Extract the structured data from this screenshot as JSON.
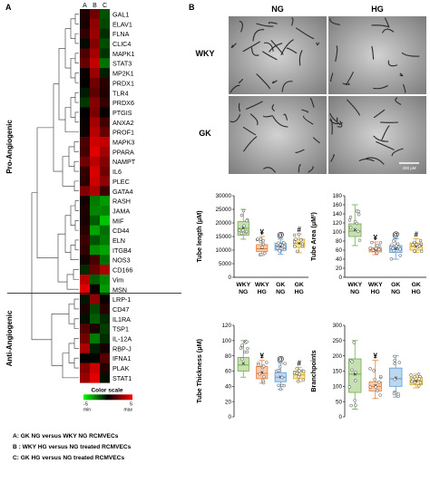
{
  "panels": {
    "a": {
      "label": "A"
    },
    "b": {
      "label": "B"
    }
  },
  "heatmap": {
    "column_labels": [
      "A",
      "B",
      "C"
    ],
    "groups": [
      {
        "name": "Pro-Angiogenic"
      },
      {
        "name": "Anti-Angiogenic"
      }
    ],
    "genes": [
      {
        "name": "GAL1",
        "v": [
          0.6,
          2.2,
          -1.6
        ]
      },
      {
        "name": "ELAV1",
        "v": [
          0.5,
          2.8,
          -1.4
        ]
      },
      {
        "name": "FLNA",
        "v": [
          1.0,
          3.0,
          -0.9
        ]
      },
      {
        "name": "CLIC4",
        "v": [
          -0.2,
          2.6,
          -1.5
        ]
      },
      {
        "name": "MAPK1",
        "v": [
          1.5,
          3.2,
          -1.0
        ]
      },
      {
        "name": "STAT3",
        "v": [
          2.0,
          3.8,
          -2.2
        ]
      },
      {
        "name": "MP2K1",
        "v": [
          0.2,
          3.0,
          -0.6
        ]
      },
      {
        "name": "PRDX1",
        "v": [
          0.1,
          2.2,
          0.8
        ]
      },
      {
        "name": "TLR4",
        "v": [
          -0.5,
          1.8,
          0.6
        ]
      },
      {
        "name": "PRDX6",
        "v": [
          -1.1,
          2.6,
          1.0
        ]
      },
      {
        "name": "PTGIS",
        "v": [
          0.0,
          2.4,
          0.2
        ]
      },
      {
        "name": "ANXA2",
        "v": [
          0.2,
          3.2,
          1.3
        ]
      },
      {
        "name": "PROF1",
        "v": [
          0.3,
          3.6,
          2.0
        ]
      },
      {
        "name": "MAPK3",
        "v": [
          1.5,
          4.0,
          3.8
        ]
      },
      {
        "name": "PPARA",
        "v": [
          1.3,
          4.4,
          3.2
        ]
      },
      {
        "name": "NAMPT",
        "v": [
          2.2,
          3.6,
          2.6
        ]
      },
      {
        "name": "IL6",
        "v": [
          1.0,
          4.2,
          2.2
        ]
      },
      {
        "name": "PLEC",
        "v": [
          0.8,
          4.0,
          2.8
        ]
      },
      {
        "name": "GATA4",
        "v": [
          2.5,
          3.4,
          1.2
        ]
      },
      {
        "name": "RASH",
        "v": [
          0.4,
          -2.4,
          -3.0
        ]
      },
      {
        "name": "JAMA",
        "v": [
          0.6,
          -2.6,
          -2.6
        ]
      },
      {
        "name": "MIF",
        "v": [
          0.5,
          -1.8,
          -3.8
        ]
      },
      {
        "name": "CD44",
        "v": [
          0.8,
          -3.2,
          -2.2
        ]
      },
      {
        "name": "ELN",
        "v": [
          1.2,
          -1.6,
          -2.4
        ]
      },
      {
        "name": "ITGB4",
        "v": [
          1.0,
          -2.8,
          -3.2
        ]
      },
      {
        "name": "NOS3",
        "v": [
          0.4,
          1.4,
          -2.2
        ]
      },
      {
        "name": "CD166",
        "v": [
          -0.8,
          2.0,
          3.4
        ]
      },
      {
        "name": "Vim",
        "v": [
          3.6,
          -1.8,
          -2.6
        ]
      },
      {
        "name": "MSN",
        "v": [
          4.4,
          0.2,
          -3.0
        ]
      },
      {
        "name": "LRP-1",
        "v": [
          -0.4,
          2.8,
          0.3
        ]
      },
      {
        "name": "CD47",
        "v": [
          0.6,
          -1.4,
          0.8
        ]
      },
      {
        "name": "IL1RA",
        "v": [
          -0.3,
          -1.8,
          -0.8
        ]
      },
      {
        "name": "TSP1",
        "v": [
          1.6,
          0.5,
          -1.2
        ]
      },
      {
        "name": "IL-12A",
        "v": [
          2.2,
          -2.4,
          -0.9
        ]
      },
      {
        "name": "RBP-J",
        "v": [
          3.4,
          -0.6,
          0.4
        ]
      },
      {
        "name": "IFNA1",
        "v": [
          0.0,
          -0.1,
          1.6
        ]
      },
      {
        "name": "PLAK",
        "v": [
          2.6,
          4.0,
          0.8
        ]
      },
      {
        "name": "STAT1",
        "v": [
          3.0,
          4.4,
          -0.3
        ]
      }
    ],
    "scale": {
      "title": "Color scale",
      "min_label": "-5",
      "min_word": "min",
      "max_label": "5",
      "max_word": "max"
    }
  },
  "legend_lines": [
    "A: GK NG versus WKY NG RCMVECs",
    "B : WKY HG versus NG treated RCMVECs",
    "C: GK HG versus NG treated RCMVECs"
  ],
  "micrographs": {
    "col_labels": [
      "NG",
      "HG"
    ],
    "row_labels": [
      "WKY",
      "GK"
    ],
    "scale_bar": "400 μM"
  },
  "chart_data": [
    {
      "type": "box",
      "name": "tube-length",
      "ylabel": "Tube length (μM)",
      "ylim": [
        0,
        30000
      ],
      "yticks": [
        0,
        5000,
        10000,
        15000,
        20000,
        25000,
        30000
      ],
      "ytick_labels": [
        "0",
        "5000",
        "10000",
        "15000",
        "20000",
        "25000",
        "30000"
      ],
      "categories": [
        "WKY NG",
        "WKY HG",
        "GK NG",
        "GK HG"
      ],
      "boxes": [
        {
          "min": 14000,
          "q1": 15500,
          "median": 18000,
          "q3": 20500,
          "max": 25000,
          "mean": 18300
        },
        {
          "min": 8000,
          "q1": 9500,
          "median": 10500,
          "q3": 12000,
          "max": 15000,
          "mean": 10800
        },
        {
          "min": 8500,
          "q1": 10000,
          "median": 11500,
          "q3": 12500,
          "max": 14000,
          "mean": 11300
        },
        {
          "min": 9000,
          "q1": 11000,
          "median": 12500,
          "q3": 14000,
          "max": 16000,
          "mean": 12500
        }
      ],
      "markers": [
        "",
        "¥",
        "@",
        "#"
      ],
      "colors": {
        "fill": [
          "#c6e0b4",
          "#f8cbad",
          "#bdd7ee",
          "#ffe699"
        ],
        "edge": [
          "#70ad47",
          "#ed7d31",
          "#5b9bd5",
          "#d4a72c"
        ]
      }
    },
    {
      "type": "box",
      "name": "tube-area",
      "ylabel": "Tube Area (μM²)",
      "ylim": [
        0,
        180
      ],
      "yticks": [
        0,
        20,
        40,
        60,
        80,
        100,
        120,
        140,
        160,
        180
      ],
      "ytick_labels": [
        "0",
        "20",
        "40",
        "60",
        "80",
        "100",
        "120",
        "140",
        "160",
        "180"
      ],
      "categories": [
        "WKY NG",
        "WKY HG",
        "GK NG",
        "GK HG"
      ],
      "boxes": [
        {
          "min": 70,
          "q1": 90,
          "median": 102,
          "q3": 118,
          "max": 160,
          "mean": 105
        },
        {
          "min": 50,
          "q1": 56,
          "median": 60,
          "q3": 65,
          "max": 78,
          "mean": 61
        },
        {
          "min": 40,
          "q1": 55,
          "median": 62,
          "q3": 70,
          "max": 85,
          "mean": 63
        },
        {
          "min": 55,
          "q1": 60,
          "median": 68,
          "q3": 76,
          "max": 85,
          "mean": 68
        }
      ],
      "markers": [
        "",
        "¥",
        "@",
        "#"
      ],
      "colors": {
        "fill": [
          "#c6e0b4",
          "#f8cbad",
          "#bdd7ee",
          "#ffe699"
        ],
        "edge": [
          "#70ad47",
          "#ed7d31",
          "#5b9bd5",
          "#d4a72c"
        ]
      }
    },
    {
      "type": "box",
      "name": "tube-thickness",
      "ylabel": "Tube Thickness (μM)",
      "ylim": [
        0,
        120
      ],
      "yticks": [
        0,
        20,
        40,
        60,
        80,
        100,
        120
      ],
      "ytick_labels": [
        "0",
        "20",
        "40",
        "60",
        "80",
        "100",
        "120"
      ],
      "categories": [
        "WKY NG",
        "WKY HG",
        "GK NG",
        "GK HG"
      ],
      "boxes": [
        {
          "min": 52,
          "q1": 60,
          "median": 68,
          "q3": 78,
          "max": 100,
          "mean": 70
        },
        {
          "min": 44,
          "q1": 50,
          "median": 57,
          "q3": 66,
          "max": 74,
          "mean": 58
        },
        {
          "min": 36,
          "q1": 46,
          "median": 52,
          "q3": 58,
          "max": 70,
          "mean": 52
        },
        {
          "min": 46,
          "q1": 50,
          "median": 55,
          "q3": 60,
          "max": 65,
          "mean": 55
        }
      ],
      "markers": [
        "",
        "¥",
        "@",
        "#"
      ],
      "colors": {
        "fill": [
          "#c6e0b4",
          "#f8cbad",
          "#bdd7ee",
          "#ffe699"
        ],
        "edge": [
          "#70ad47",
          "#ed7d31",
          "#5b9bd5",
          "#d4a72c"
        ]
      }
    },
    {
      "type": "box",
      "name": "branchpoints",
      "ylabel": "Branchpoints",
      "ylim": [
        0,
        300
      ],
      "yticks": [
        0,
        50,
        100,
        150,
        200,
        250,
        300
      ],
      "ytick_labels": [
        "0",
        "50",
        "100",
        "150",
        "200",
        "250",
        "300"
      ],
      "categories": [
        "WKY NG",
        "WKY HG",
        "GK NG",
        "GK HG"
      ],
      "boxes": [
        {
          "min": 25,
          "q1": 80,
          "median": 140,
          "q3": 190,
          "max": 250,
          "mean": 140
        },
        {
          "min": 60,
          "q1": 85,
          "median": 100,
          "q3": 115,
          "max": 185,
          "mean": 102
        },
        {
          "min": 65,
          "q1": 100,
          "median": 125,
          "q3": 160,
          "max": 200,
          "mean": 128
        },
        {
          "min": 95,
          "q1": 105,
          "median": 118,
          "q3": 130,
          "max": 140,
          "mean": 118
        }
      ],
      "markers": [
        "",
        "¥",
        "",
        ""
      ],
      "colors": {
        "fill": [
          "#c6e0b4",
          "#f8cbad",
          "#bdd7ee",
          "#ffe699"
        ],
        "edge": [
          "#70ad47",
          "#ed7d31",
          "#5b9bd5",
          "#d4a72c"
        ]
      }
    }
  ]
}
